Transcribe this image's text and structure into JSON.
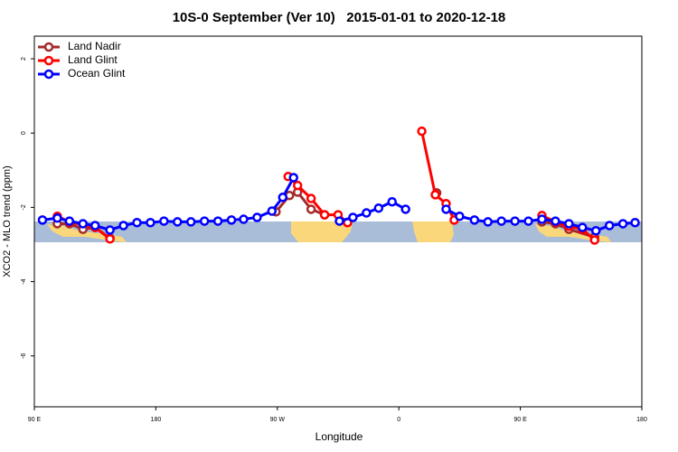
{
  "chart_data": {
    "type": "line",
    "title": "10S-0 September (Ver 10)   2015-01-01 to 2020-12-18",
    "xlabel": "Longitude",
    "ylabel": "XCO2 - MLO trend (ppm)",
    "xlim": [
      90,
      540
    ],
    "xticks": [
      {
        "value": 90,
        "label": "90 E"
      },
      180,
      {
        "value": 270,
        "label": "90 W"
      },
      {
        "value": 360,
        "label": "0"
      },
      {
        "value": 450,
        "label": "90 E"
      },
      {
        "value": 540,
        "label": "180"
      }
    ],
    "ylim": [
      -7.37,
      2.61
    ],
    "yticks": [
      -6,
      -4,
      -2,
      0,
      2
    ],
    "legend": "top-left",
    "series": [
      {
        "name": "Land Nadir",
        "color": "#a52a2a",
        "x": [
          107,
          116,
          126,
          135,
          146,
          null,
          269,
          279,
          285,
          295,
          305,
          null,
          388,
          null,
          466,
          476,
          486,
          505
        ],
        "values": [
          -2.44,
          -2.44,
          -2.59,
          -2.54,
          -2.83,
          null,
          -2.12,
          -1.68,
          -1.59,
          -2.05,
          -2.2,
          null,
          -1.61,
          null,
          -2.39,
          -2.44,
          -2.59,
          -2.8
        ]
      },
      {
        "name": "Land Glint",
        "color": "#ff0000",
        "x": [
          107,
          116,
          135,
          146,
          null,
          278,
          285,
          295,
          305,
          315,
          322,
          null,
          377,
          387,
          395,
          401,
          null,
          466,
          476,
          486,
          496,
          505
        ],
        "values": [
          -2.24,
          -2.39,
          -2.54,
          -2.85,
          null,
          -1.17,
          -1.41,
          -1.76,
          -2.2,
          -2.2,
          -2.41,
          null,
          0.05,
          -1.66,
          -1.9,
          -2.34,
          null,
          -2.22,
          -2.39,
          -2.51,
          -2.59,
          -2.88
        ]
      },
      {
        "name": "Ocean Glint",
        "color": "#0000ff",
        "x": [
          96,
          107,
          116,
          126,
          135,
          146,
          156,
          166,
          176,
          186,
          196,
          206,
          216,
          226,
          236,
          245,
          255,
          266,
          274,
          282,
          null,
          316,
          326,
          336,
          345,
          355,
          365,
          null,
          395,
          405,
          416,
          426,
          436,
          446,
          456,
          466,
          476,
          486,
          496,
          506,
          516,
          526,
          535
        ],
        "values": [
          -2.34,
          -2.29,
          -2.37,
          -2.44,
          -2.49,
          -2.61,
          -2.49,
          -2.41,
          -2.41,
          -2.37,
          -2.39,
          -2.39,
          -2.37,
          -2.37,
          -2.34,
          -2.32,
          -2.27,
          -2.1,
          -1.73,
          -1.2,
          null,
          -2.37,
          -2.27,
          -2.15,
          -2.02,
          -1.85,
          -2.05,
          null,
          -2.05,
          -2.24,
          -2.34,
          -2.39,
          -2.37,
          -2.37,
          -2.37,
          -2.32,
          -2.37,
          -2.44,
          -2.54,
          -2.63,
          -2.49,
          -2.44,
          -2.41
        ]
      }
    ]
  }
}
